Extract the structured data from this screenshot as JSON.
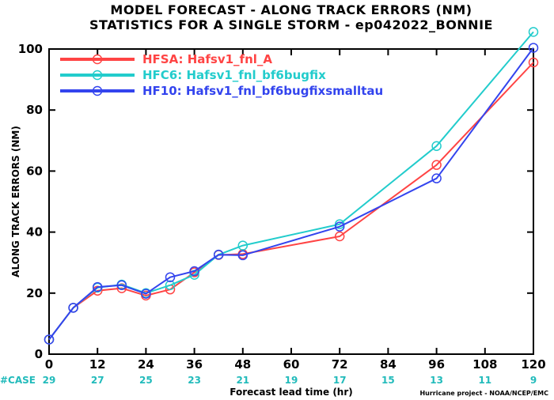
{
  "chart_data": {
    "type": "line",
    "title": "MODEL FORECAST - ALONG TRACK ERRORS (NM)",
    "subtitle": "STATISTICS FOR A SINGLE STORM - ep042022_BONNIE",
    "xlabel": "Forecast lead time (hr)",
    "ylabel": "ALONG TRACK ERRORS (NM)",
    "xlim": [
      0,
      120
    ],
    "ylim": [
      0,
      100
    ],
    "x_ticks": [
      0,
      12,
      24,
      36,
      48,
      60,
      72,
      84,
      96,
      108,
      120
    ],
    "y_ticks": [
      0,
      20,
      40,
      60,
      80,
      100
    ],
    "x": [
      0,
      6,
      12,
      18,
      24,
      30,
      36,
      42,
      48,
      72,
      96,
      120
    ],
    "legend_position": "top-left",
    "series": [
      {
        "name": "HFSA:  Hafsv1_fnl_A",
        "color": "#ff4444",
        "values": [
          4.8,
          15.2,
          20.8,
          21.6,
          19.2,
          21.2,
          26.8,
          32.5,
          32.8,
          38.6,
          62.0,
          95.6
        ]
      },
      {
        "name": "HFC6:  Hafsv1_fnl_bf6bugfix",
        "color": "#22cccc",
        "values": [
          4.8,
          15.2,
          21.8,
          22.8,
          20.0,
          22.6,
          26.0,
          32.6,
          35.6,
          42.6,
          68.2,
          105.6
        ]
      },
      {
        "name": "HF10:  Hafsv1_fnl_bf6bugfixsmalltau",
        "color": "#3344ee",
        "values": [
          4.8,
          15.2,
          22.0,
          22.6,
          19.8,
          25.2,
          27.2,
          32.6,
          32.4,
          41.8,
          57.6,
          100.4
        ]
      }
    ],
    "case_label": "#CASE",
    "case_color": "#22bbbb",
    "cases": [
      "29",
      "27",
      "25",
      "23",
      "21",
      "19",
      "17",
      "15",
      "13",
      "11",
      "9"
    ],
    "credit": "Hurricane project - NOAA/NCEP/EMC"
  }
}
